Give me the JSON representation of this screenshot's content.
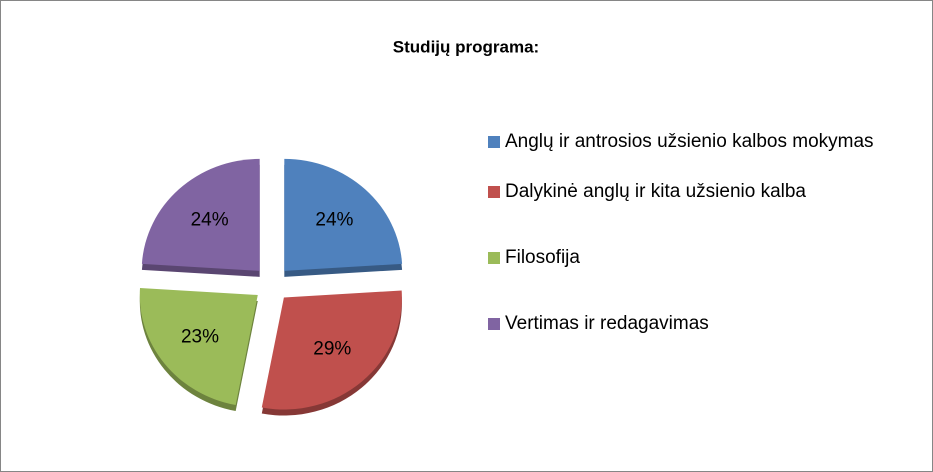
{
  "chart_data": {
    "type": "pie",
    "title": "Studijų programa:",
    "categories": [
      "Anglų ir antrosios užsienio kalbos mokymas",
      "Dalykinė anglų ir kita užsienio kalba",
      "Filosofija",
      "Vertimas ir redagavimas"
    ],
    "values": [
      24,
      29,
      23,
      24
    ],
    "value_labels": [
      "24%",
      "29%",
      "23%",
      "24%"
    ],
    "colors": [
      "#4f81bd",
      "#c0504d",
      "#9bbb59",
      "#8064a2"
    ],
    "legend": "right"
  }
}
